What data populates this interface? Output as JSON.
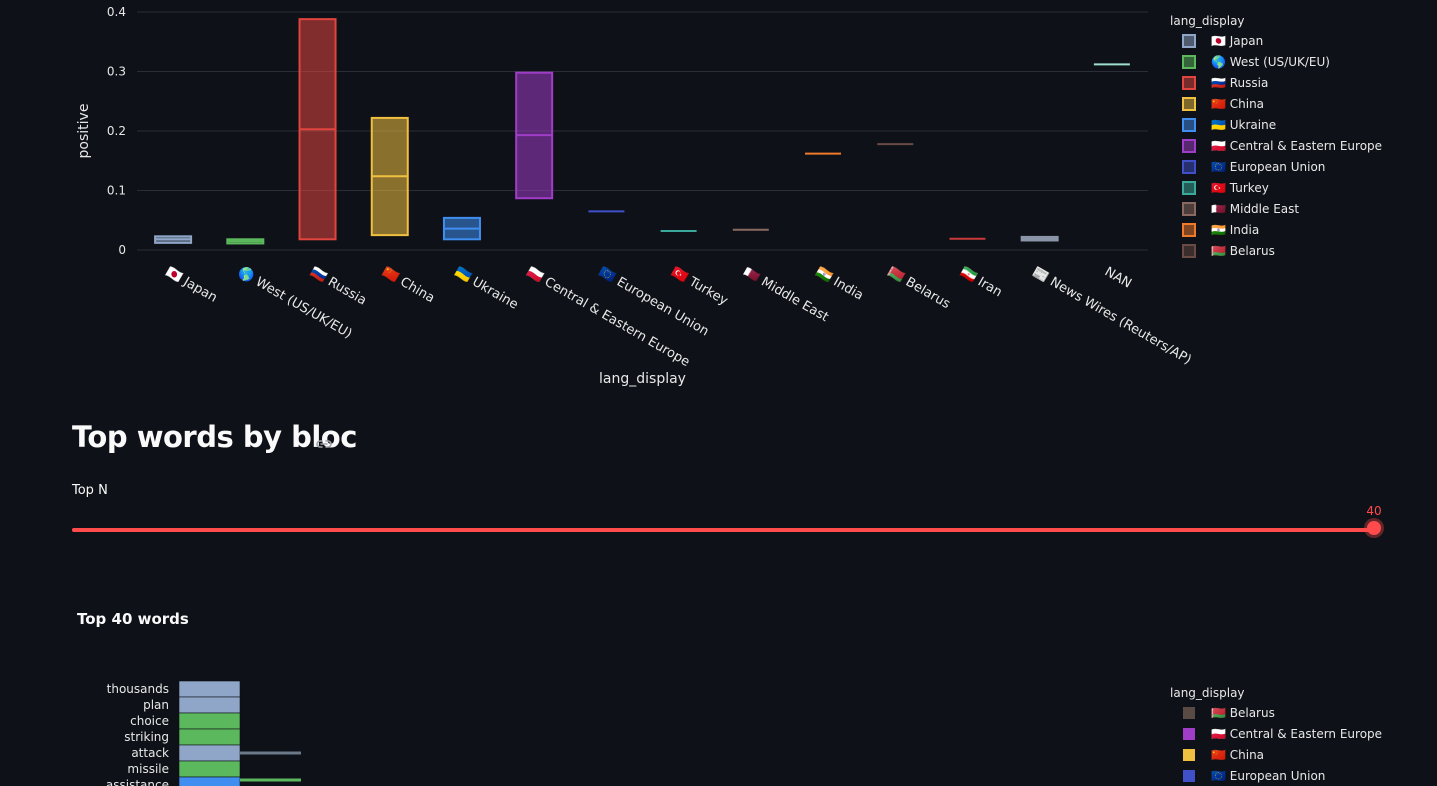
{
  "theme": {
    "background": "#0e1117",
    "text": "#fafafa",
    "grid": "#2b2e36",
    "axis_text": "#e8e8e8",
    "accent": "#ff4b4b"
  },
  "chart_data": [
    {
      "type": "box",
      "title": "",
      "xlabel": "lang_display",
      "ylabel": "positive",
      "ylim": [
        0,
        0.4
      ],
      "yticks": [
        0,
        0.1,
        0.2,
        0.3,
        0.4
      ],
      "ytick_labels": [
        "0",
        "0.1",
        "0.2",
        "0.3",
        "0.4"
      ],
      "grid": true,
      "legend_title": "lang_display",
      "legend_position": "top-right",
      "categories": [
        {
          "flag": "🇯🇵",
          "name": "Japan",
          "q1": 0.012,
          "median": 0.018,
          "q3": 0.023,
          "color": "#8fa6c8"
        },
        {
          "flag": "🌎",
          "name": "West (US/UK/EU)",
          "q1": 0.011,
          "median": 0.015,
          "q3": 0.018,
          "color": "#5cb85c"
        },
        {
          "flag": "🇷🇺",
          "name": "Russia",
          "q1": 0.018,
          "median": 0.203,
          "q3": 0.388,
          "color": "#e2453f"
        },
        {
          "flag": "🇨🇳",
          "name": "China",
          "q1": 0.025,
          "median": 0.124,
          "q3": 0.222,
          "color": "#f0c040"
        },
        {
          "flag": "🇺🇦",
          "name": "Ukraine",
          "q1": 0.018,
          "median": 0.036,
          "q3": 0.054,
          "color": "#3f8ef0"
        },
        {
          "flag": "🇵🇱",
          "name": "Central & Eastern Europe",
          "q1": 0.087,
          "median": 0.193,
          "q3": 0.298,
          "color": "#a03dc8"
        },
        {
          "flag": "🇪🇺",
          "name": "European Union",
          "q1": 0.065,
          "median": 0.065,
          "q3": 0.065,
          "color": "#4050c8"
        },
        {
          "flag": "🇹🇷",
          "name": "Turkey",
          "q1": 0.032,
          "median": 0.032,
          "q3": 0.032,
          "color": "#3aa89a"
        },
        {
          "flag": "🇶🇦",
          "name": "Middle East",
          "q1": 0.034,
          "median": 0.034,
          "q3": 0.034,
          "color": "#8a6a60"
        },
        {
          "flag": "🇮🇳",
          "name": "India",
          "q1": 0.162,
          "median": 0.162,
          "q3": 0.162,
          "color": "#f07a2a"
        },
        {
          "flag": "🇧🇾",
          "name": "Belarus",
          "q1": 0.178,
          "median": 0.178,
          "q3": 0.178,
          "color": "#6a4a44"
        },
        {
          "flag": "🇮🇷",
          "name": "Iran",
          "q1": 0.019,
          "median": 0.019,
          "q3": 0.019,
          "color": "#c83a3a"
        },
        {
          "flag": "📰",
          "name": "News Wires (Reuters/AP)",
          "q1": 0.016,
          "median": 0.019,
          "q3": 0.022,
          "color": "#8a96a8"
        },
        {
          "flag": "",
          "name": "NAN",
          "q1": 0.312,
          "median": 0.312,
          "q3": 0.312,
          "color": "#9ee0d0"
        }
      ],
      "legend": [
        {
          "flag": "🇯🇵",
          "name": "Japan",
          "color": "#8fa6c8"
        },
        {
          "flag": "🌎",
          "name": "West (US/UK/EU)",
          "color": "#5cb85c"
        },
        {
          "flag": "🇷🇺",
          "name": "Russia",
          "color": "#e2453f"
        },
        {
          "flag": "🇨🇳",
          "name": "China",
          "color": "#f0c040"
        },
        {
          "flag": "🇺🇦",
          "name": "Ukraine",
          "color": "#3f8ef0"
        },
        {
          "flag": "🇵🇱",
          "name": "Central & Eastern Europe",
          "color": "#a03dc8"
        },
        {
          "flag": "🇪🇺",
          "name": "European Union",
          "color": "#4050c8"
        },
        {
          "flag": "🇹🇷",
          "name": "Turkey",
          "color": "#3aa89a"
        },
        {
          "flag": "🇶🇦",
          "name": "Middle East",
          "color": "#8a6a60"
        },
        {
          "flag": "🇮🇳",
          "name": "India",
          "color": "#f07a2a"
        },
        {
          "flag": "🇧🇾",
          "name": "Belarus",
          "color": "#6a4a44"
        }
      ]
    },
    {
      "type": "bar",
      "orientation": "horizontal",
      "barmode": "stack",
      "title": "Top 40 words",
      "legend_title": "lang_display",
      "legend_position": "right",
      "categories": [
        "thousands",
        "plan",
        "choice",
        "striking",
        "attack",
        "missile",
        "assistance"
      ],
      "series": [
        {
          "name": "Japan",
          "color": "#8fa6c8",
          "values": [
            1,
            1,
            0,
            0,
            1,
            0,
            0
          ]
        },
        {
          "name": "West (US/UK/EU)",
          "color": "#5cb85c",
          "values": [
            0,
            0,
            1,
            1,
            0,
            1,
            0
          ]
        },
        {
          "name": "Ukraine",
          "color": "#3f8ef0",
          "values": [
            0,
            0,
            0,
            0,
            0,
            0,
            1
          ]
        }
      ],
      "legend": [
        {
          "flag": "🇧🇾",
          "name": "Belarus",
          "color": "#5a4a44"
        },
        {
          "flag": "🇵🇱",
          "name": "Central & Eastern Europe",
          "color": "#a03dc8"
        },
        {
          "flag": "🇨🇳",
          "name": "China",
          "color": "#f0c040"
        },
        {
          "flag": "🇪🇺",
          "name": "European Union",
          "color": "#4050c8"
        }
      ]
    }
  ],
  "section": {
    "title": "Top words by bloc"
  },
  "slider": {
    "label": "Top N",
    "value": "40",
    "min": 0,
    "max": 40,
    "fraction": 1.0
  },
  "chart2_title": "Top 40 words"
}
